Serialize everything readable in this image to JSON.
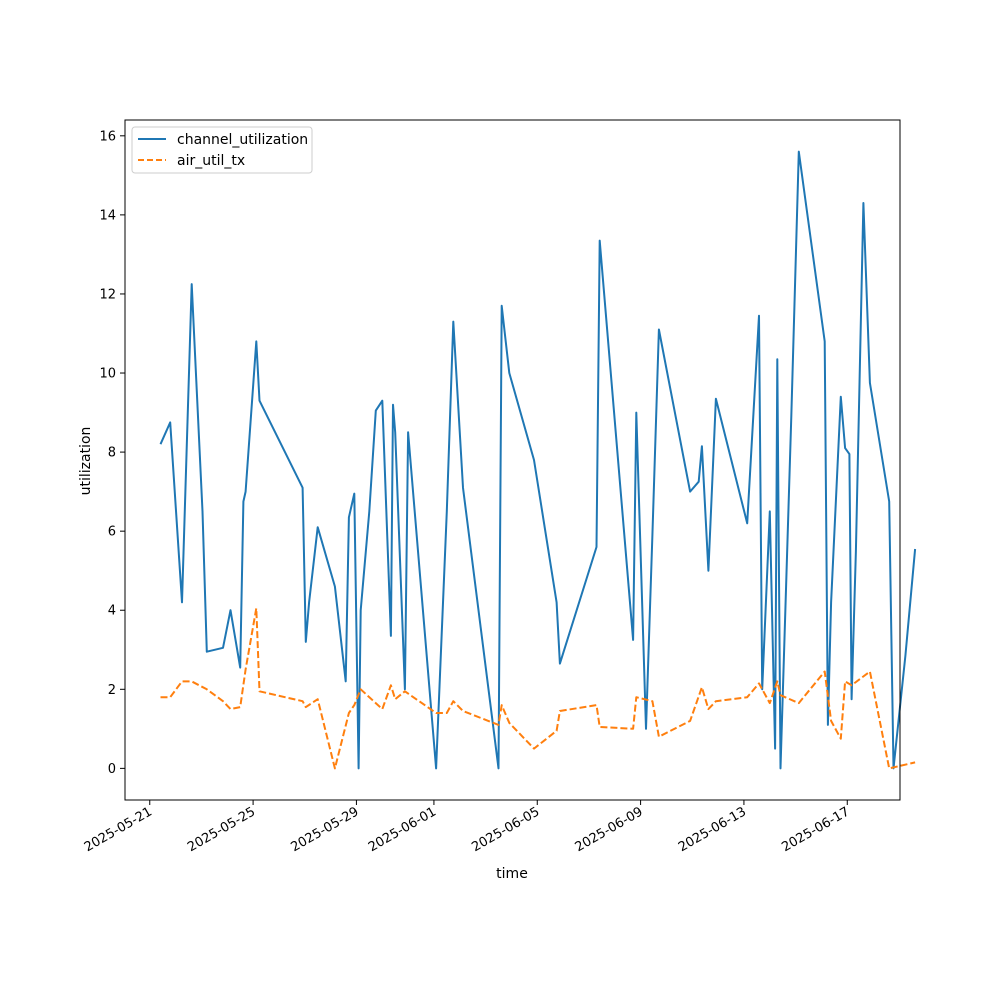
{
  "chart_data": {
    "type": "line",
    "xlabel": "time",
    "ylabel": "utilization",
    "x_tick_labels": [
      "2025-05-21",
      "2025-05-25",
      "2025-05-29",
      "2025-06-01",
      "2025-06-05",
      "2025-06-09",
      "2025-06-13",
      "2025-06-17"
    ],
    "y_tick_labels": [
      "0",
      "2",
      "4",
      "6",
      "8",
      "10",
      "12",
      "14",
      "16"
    ],
    "xlim": [
      "2025-05-20T01:00",
      "2025-06-19T01:00"
    ],
    "ylim": [
      -0.8,
      16.4
    ],
    "grid": false,
    "legend_position": "top-left",
    "series": [
      {
        "name": "channel_utilization",
        "color": "#1f77b4",
        "style": "solid",
        "points": [
          [
            "2025-05-21T10:00",
            8.2
          ],
          [
            "2025-05-21T19:00",
            8.75
          ],
          [
            "2025-05-22T06:00",
            4.2
          ],
          [
            "2025-05-22T15:00",
            12.25
          ],
          [
            "2025-05-23T01:00",
            6.5
          ],
          [
            "2025-05-23T05:00",
            2.95
          ],
          [
            "2025-05-23T20:00",
            3.05
          ],
          [
            "2025-05-24T03:00",
            4.0
          ],
          [
            "2025-05-24T12:00",
            2.55
          ],
          [
            "2025-05-24T15:00",
            6.75
          ],
          [
            "2025-05-24T17:00",
            7.0
          ],
          [
            "2025-05-25T03:00",
            10.8
          ],
          [
            "2025-05-25T06:00",
            9.3
          ],
          [
            "2025-05-26T22:00",
            7.1
          ],
          [
            "2025-05-27T01:00",
            3.2
          ],
          [
            "2025-05-27T04:00",
            4.2
          ],
          [
            "2025-05-27T12:00",
            6.1
          ],
          [
            "2025-05-28T04:00",
            4.6
          ],
          [
            "2025-05-28T14:00",
            2.2
          ],
          [
            "2025-05-28T17:00",
            6.35
          ],
          [
            "2025-05-28T22:00",
            6.95
          ],
          [
            "2025-05-29T02:00",
            0.0
          ],
          [
            "2025-05-29T04:00",
            4.0
          ],
          [
            "2025-05-29T12:00",
            6.5
          ],
          [
            "2025-05-29T18:00",
            9.05
          ],
          [
            "2025-05-30T00:00",
            9.3
          ],
          [
            "2025-05-30T08:00",
            3.35
          ],
          [
            "2025-05-30T10:00",
            9.2
          ],
          [
            "2025-05-30T12:00",
            8.5
          ],
          [
            "2025-05-30T21:00",
            2.0
          ],
          [
            "2025-05-31T00:00",
            8.5
          ],
          [
            "2025-06-01T02:00",
            0.0
          ],
          [
            "2025-06-01T12:00",
            6.5
          ],
          [
            "2025-06-01T18:00",
            11.3
          ],
          [
            "2025-06-02T03:00",
            7.1
          ],
          [
            "2025-06-03T12:00",
            0.0
          ],
          [
            "2025-06-03T15:00",
            11.7
          ],
          [
            "2025-06-03T22:00",
            10.0
          ],
          [
            "2025-06-04T21:00",
            7.8
          ],
          [
            "2025-06-05T18:00",
            4.2
          ],
          [
            "2025-06-05T21:00",
            2.65
          ],
          [
            "2025-06-07T07:00",
            5.6
          ],
          [
            "2025-06-07T10:00",
            13.35
          ],
          [
            "2025-06-08T17:00",
            3.25
          ],
          [
            "2025-06-08T20:00",
            9.0
          ],
          [
            "2025-06-09T05:00",
            1.0
          ],
          [
            "2025-06-09T11:00",
            5.9
          ],
          [
            "2025-06-09T17:00",
            11.1
          ],
          [
            "2025-06-10T22:00",
            7.0
          ],
          [
            "2025-06-11T06:00",
            7.25
          ],
          [
            "2025-06-11T09:00",
            8.15
          ],
          [
            "2025-06-11T15:00",
            5.0
          ],
          [
            "2025-06-11T22:00",
            9.35
          ],
          [
            "2025-06-13T03:00",
            6.2
          ],
          [
            "2025-06-13T14:00",
            11.45
          ],
          [
            "2025-06-13T17:00",
            2.0
          ],
          [
            "2025-06-14T00:00",
            6.5
          ],
          [
            "2025-06-14T05:00",
            0.5
          ],
          [
            "2025-06-14T07:00",
            10.35
          ],
          [
            "2025-06-14T10:00",
            0.0
          ],
          [
            "2025-06-14T20:00",
            8.9
          ],
          [
            "2025-06-15T03:00",
            15.6
          ],
          [
            "2025-06-16T03:00",
            10.8
          ],
          [
            "2025-06-16T06:00",
            1.1
          ],
          [
            "2025-06-16T09:00",
            4.2
          ],
          [
            "2025-06-16T18:00",
            9.4
          ],
          [
            "2025-06-16T22:00",
            8.1
          ],
          [
            "2025-06-17T02:00",
            7.95
          ],
          [
            "2025-06-17T04:00",
            1.75
          ],
          [
            "2025-06-17T08:00",
            5.5
          ],
          [
            "2025-06-17T15:00",
            14.3
          ],
          [
            "2025-06-17T21:00",
            9.75
          ],
          [
            "2025-06-18T15:00",
            6.75
          ],
          [
            "2025-06-18T19:00",
            0.0
          ],
          [
            "2025-06-19T06:00",
            2.85
          ],
          [
            "2025-06-19T15:00",
            5.55
          ]
        ]
      },
      {
        "name": "air_util_tx",
        "color": "#ff7f0e",
        "style": "dashed",
        "points": [
          [
            "2025-05-21T10:00",
            1.8
          ],
          [
            "2025-05-21T19:00",
            1.8
          ],
          [
            "2025-05-22T06:00",
            2.2
          ],
          [
            "2025-05-22T15:00",
            2.2
          ],
          [
            "2025-05-23T05:00",
            2.0
          ],
          [
            "2025-05-23T20:00",
            1.7
          ],
          [
            "2025-05-24T03:00",
            1.5
          ],
          [
            "2025-05-24T12:00",
            1.55
          ],
          [
            "2025-05-24T17:00",
            2.5
          ],
          [
            "2025-05-25T03:00",
            4.05
          ],
          [
            "2025-05-25T06:00",
            1.95
          ],
          [
            "2025-05-26T22:00",
            1.7
          ],
          [
            "2025-05-27T01:00",
            1.55
          ],
          [
            "2025-05-27T12:00",
            1.75
          ],
          [
            "2025-05-28T04:00",
            0.0
          ],
          [
            "2025-05-28T17:00",
            1.4
          ],
          [
            "2025-05-28T22:00",
            1.6
          ],
          [
            "2025-05-29T04:00",
            2.0
          ],
          [
            "2025-05-30T00:00",
            1.5
          ],
          [
            "2025-05-30T08:00",
            2.1
          ],
          [
            "2025-05-30T12:00",
            1.75
          ],
          [
            "2025-05-30T21:00",
            1.95
          ],
          [
            "2025-06-01T02:00",
            1.4
          ],
          [
            "2025-06-01T12:00",
            1.4
          ],
          [
            "2025-06-01T18:00",
            1.7
          ],
          [
            "2025-06-02T03:00",
            1.45
          ],
          [
            "2025-06-03T12:00",
            1.1
          ],
          [
            "2025-06-03T15:00",
            1.6
          ],
          [
            "2025-06-03T22:00",
            1.15
          ],
          [
            "2025-06-04T21:00",
            0.5
          ],
          [
            "2025-06-05T18:00",
            0.95
          ],
          [
            "2025-06-05T21:00",
            1.45
          ],
          [
            "2025-06-07T07:00",
            1.6
          ],
          [
            "2025-06-07T10:00",
            1.05
          ],
          [
            "2025-06-08T17:00",
            1.0
          ],
          [
            "2025-06-08T20:00",
            1.8
          ],
          [
            "2025-06-09T11:00",
            1.7
          ],
          [
            "2025-06-09T17:00",
            0.8
          ],
          [
            "2025-06-10T22:00",
            1.2
          ],
          [
            "2025-06-11T09:00",
            2.05
          ],
          [
            "2025-06-11T15:00",
            1.5
          ],
          [
            "2025-06-11T22:00",
            1.7
          ],
          [
            "2025-06-13T03:00",
            1.8
          ],
          [
            "2025-06-13T14:00",
            2.15
          ],
          [
            "2025-06-14T00:00",
            1.65
          ],
          [
            "2025-06-14T07:00",
            2.2
          ],
          [
            "2025-06-14T10:00",
            1.85
          ],
          [
            "2025-06-15T03:00",
            1.65
          ],
          [
            "2025-06-16T03:00",
            2.45
          ],
          [
            "2025-06-16T09:00",
            1.2
          ],
          [
            "2025-06-16T18:00",
            0.75
          ],
          [
            "2025-06-16T22:00",
            2.2
          ],
          [
            "2025-06-17T04:00",
            2.1
          ],
          [
            "2025-06-17T21:00",
            2.45
          ],
          [
            "2025-06-18T15:00",
            0.0
          ],
          [
            "2025-06-19T15:00",
            0.15
          ]
        ]
      }
    ]
  }
}
